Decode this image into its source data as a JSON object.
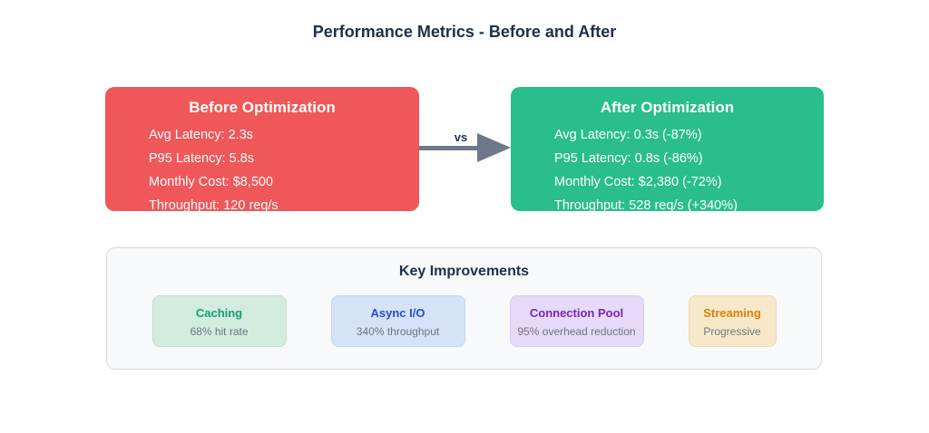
{
  "page": {
    "title": "Performance Metrics - Before and After"
  },
  "arrow": {
    "label": "vs",
    "color": "#6e7888"
  },
  "boxes": {
    "before": {
      "heading": "Before Optimization",
      "bg": "#ef5759",
      "text_color": "#ffffff",
      "metrics": [
        "Avg Latency: 2.3s",
        "P95 Latency: 5.8s",
        "Monthly Cost: $8,500",
        "Throughput: 120 req/s"
      ]
    },
    "after": {
      "heading": "After Optimization",
      "bg": "#2abe8c",
      "text_color": "#ffffff",
      "metrics": [
        "Avg Latency: 0.3s (-87%)",
        "P95 Latency: 0.8s (-86%)",
        "Monthly Cost: $2,380 (-72%)",
        "Throughput: 528 req/s (+340%)"
      ]
    }
  },
  "improvements": {
    "heading": "Key Improvements",
    "panel_bg": "#f8f9fb",
    "cards": [
      {
        "title": "Caching",
        "subtitle": "68% hit rate",
        "title_color": "#13a06e",
        "bg": "#d2ecdf"
      },
      {
        "title": "Async I/O",
        "subtitle": "340% throughput",
        "title_color": "#2b4bcb",
        "bg": "#d5e3f8"
      },
      {
        "title": "Connection Pool",
        "subtitle": "95% overhead reduction",
        "title_color": "#7a23bd",
        "bg": "#e5daf8"
      },
      {
        "title": "Streaming",
        "subtitle": "Progressive",
        "title_color": "#d8830f",
        "bg": "#f7e8c9"
      }
    ]
  }
}
